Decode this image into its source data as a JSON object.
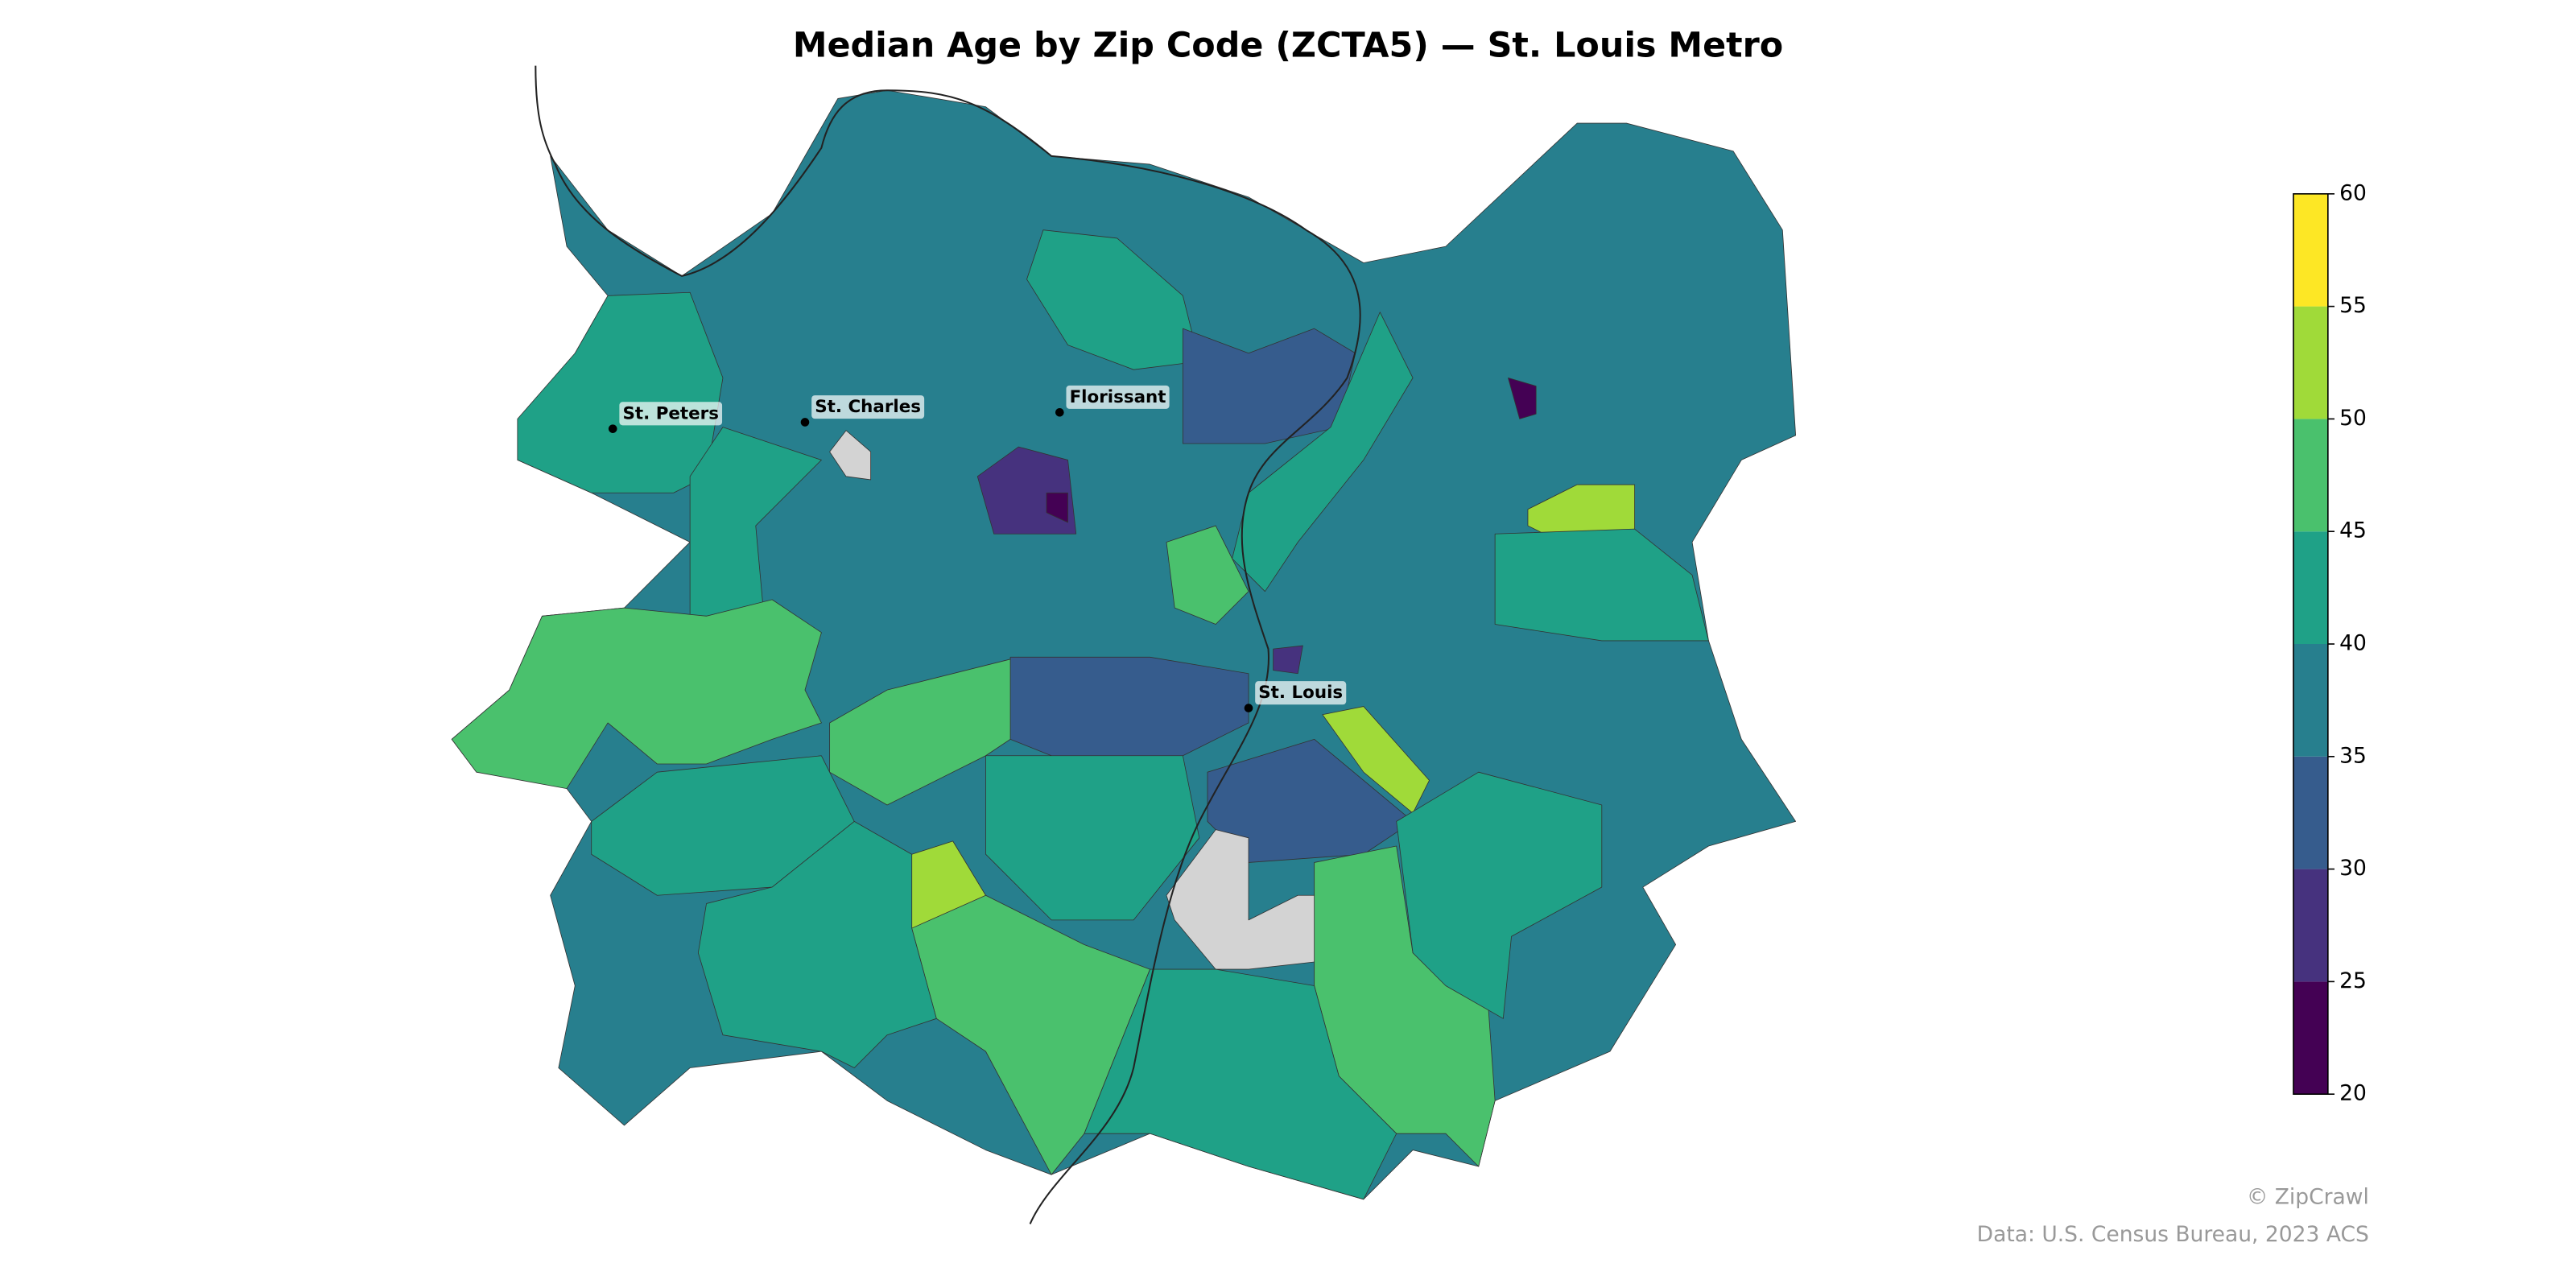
{
  "chart_data": {
    "type": "choropleth",
    "title": "Median Age by Zip Code (ZCTA5) — St. Louis Metro",
    "values": [
      38,
      42,
      42,
      43,
      28,
      22,
      33,
      42,
      22,
      52,
      42,
      47,
      47,
      42,
      33,
      42,
      52,
      47,
      32,
      null,
      null,
      52,
      47,
      42,
      42,
      47,
      42,
      28
    ],
    "no_data_color": "#d3d3d3",
    "colorbar": {
      "lim": [
        20,
        60
      ],
      "ticks": [
        20,
        25,
        30,
        35,
        40,
        45,
        50,
        55,
        60
      ],
      "colors": [
        "#440154",
        "#46327e",
        "#365c8d",
        "#277f8e",
        "#1fa187",
        "#4ac16d",
        "#a0da39",
        "#fde725"
      ]
    },
    "cities": [
      "St. Peters",
      "St. Charles",
      "Florissant",
      "St. Louis"
    ],
    "credit": "© ZipCrawl",
    "source": "Data: U.S. Census Bureau, 2023 ACS"
  }
}
